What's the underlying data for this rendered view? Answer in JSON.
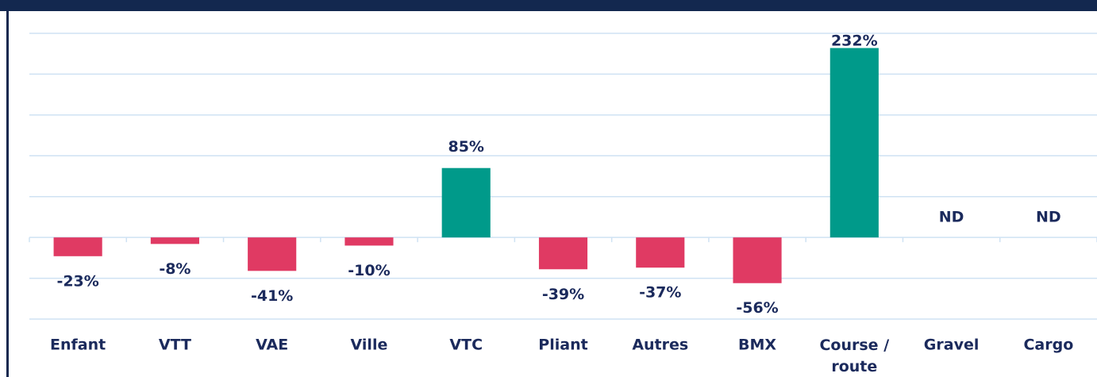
{
  "chart_data": {
    "type": "bar",
    "categories": [
      "Enfant",
      "VTT",
      "VAE",
      "Ville",
      "VTC",
      "Pliant",
      "Autres",
      "BMX",
      "Course / route",
      "Gravel",
      "Cargo"
    ],
    "values": [
      -23,
      -8,
      -41,
      -10,
      85,
      -39,
      -37,
      -56,
      232,
      null,
      null
    ],
    "value_labels": [
      "-23%",
      "-8%",
      "-41%",
      "-10%",
      "85%",
      "-39%",
      "-37%",
      "-56%",
      "232%",
      "ND",
      "ND"
    ],
    "positive_color": "#009a8a",
    "negative_color": "#e03a63",
    "ylim": [
      -100,
      250
    ],
    "yticks": [
      -100,
      -50,
      0,
      50,
      100,
      150,
      200,
      250
    ],
    "grid": true
  }
}
